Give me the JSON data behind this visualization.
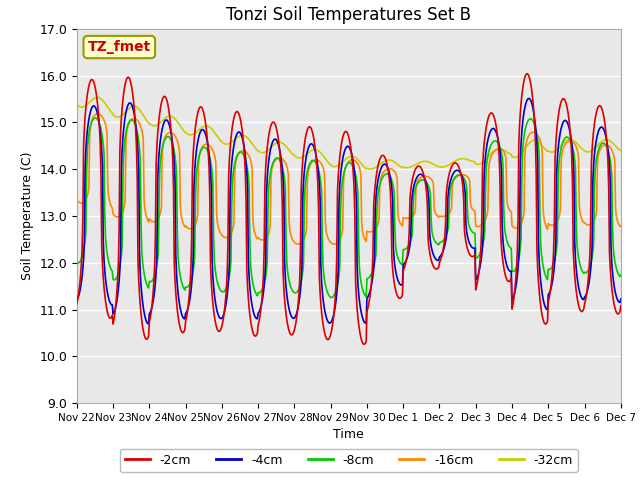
{
  "title": "Tonzi Soil Temperatures Set B",
  "xlabel": "Time",
  "ylabel": "Soil Temperature (C)",
  "ylim": [
    9.0,
    17.0
  ],
  "yticks": [
    9.0,
    10.0,
    11.0,
    12.0,
    13.0,
    14.0,
    15.0,
    16.0,
    17.0
  ],
  "colors": {
    "-2cm": "#dd0000",
    "-4cm": "#0000cc",
    "-8cm": "#00cc00",
    "-16cm": "#ff8800",
    "-32cm": "#cccc00"
  },
  "legend_label": "TZ_fmet",
  "legend_bg": "#ffffcc",
  "legend_border": "#999900",
  "bg_color": "#e8e8e8",
  "x_labels": [
    "Nov 22",
    "Nov 23",
    "Nov 24",
    "Nov 25",
    "Nov 26",
    "Nov 27",
    "Nov 28",
    "Nov 29",
    "Nov 30",
    "Dec 1",
    "Dec 2",
    "Dec 3",
    "Dec 4",
    "Dec 5",
    "Dec 6",
    "Dec 7"
  ]
}
